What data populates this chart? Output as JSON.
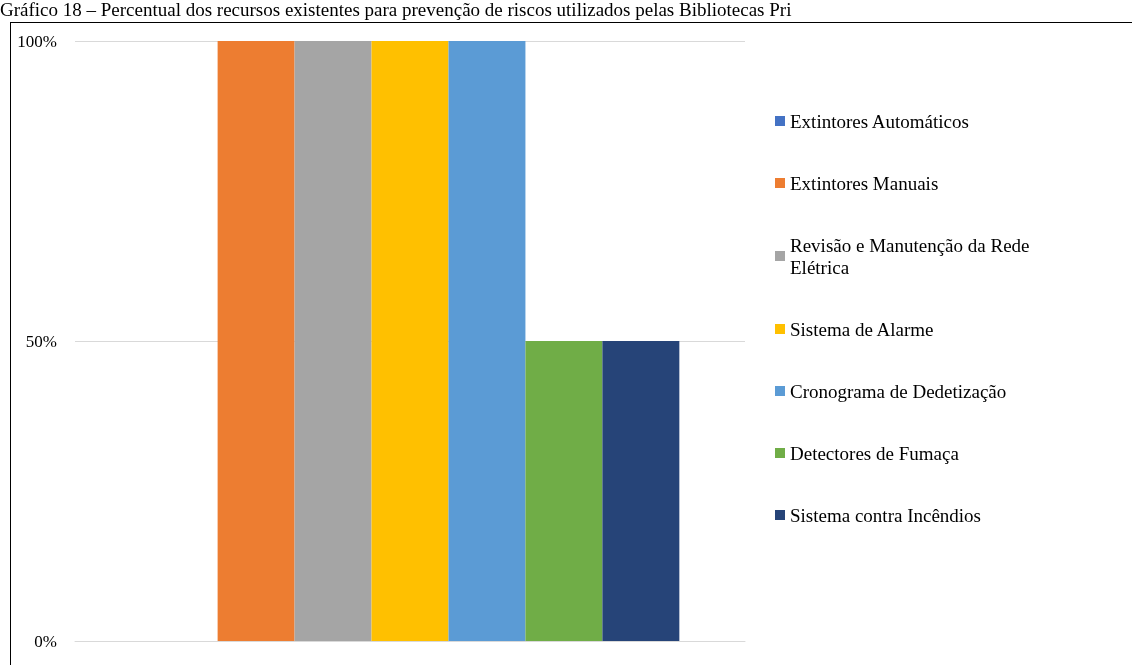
{
  "chart_data": {
    "type": "bar",
    "title": "Gráfico 18 – Percentual dos recursos existentes para prevenção de riscos utilizados pelas Bibliotecas Pri",
    "categories": [
      null
    ],
    "series": [
      {
        "name": "Extintores Automáticos",
        "color": "#4472c4",
        "values": [
          0
        ]
      },
      {
        "name": "Extintores Manuais",
        "color": "#ed7d31",
        "values": [
          100
        ]
      },
      {
        "name": "Revisão e Manutenção da Rede Elétrica",
        "color": "#a5a5a5",
        "values": [
          100
        ]
      },
      {
        "name": "Sistema de Alarme",
        "color": "#ffc000",
        "values": [
          100
        ]
      },
      {
        "name": "Cronograma de Dedetização",
        "color": "#5b9bd5",
        "values": [
          100
        ]
      },
      {
        "name": "Detectores de Fumaça",
        "color": "#70ad47",
        "values": [
          50
        ]
      },
      {
        "name": "Sistema contra Incêndios",
        "color": "#264478",
        "values": [
          50
        ]
      }
    ],
    "ylim": [
      0,
      100
    ],
    "yticks": [
      {
        "value": 0,
        "label": "0%"
      },
      {
        "value": 50,
        "label": "50%"
      },
      {
        "value": 100,
        "label": "100%"
      }
    ],
    "grid": "y",
    "legend": "right"
  }
}
